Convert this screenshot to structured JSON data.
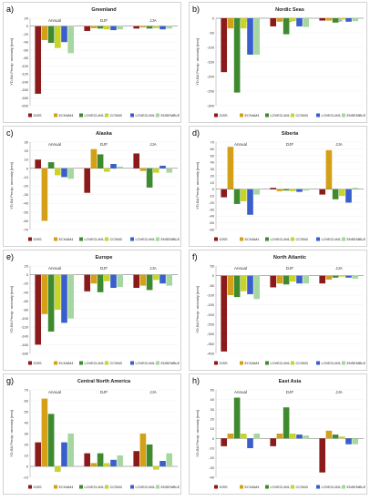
{
  "legend_labels": [
    "GISS",
    "ECHAM4",
    "LOVECLIM1.1",
    "CCSM3",
    "LOVECLIM1.2",
    "ENSEMBLE"
  ],
  "model_colors": [
    "#8b1a1a",
    "#d4a017",
    "#3f8a2e",
    "#c9d42a",
    "#3a5fcd",
    "#a7d7a0"
  ],
  "ylabel": "YD-BA Precip. anomaly [mm]",
  "chart_data": [
    {
      "panel": "a)",
      "title": "Greenland",
      "type": "bar",
      "categories": [
        "Annual",
        "DJF",
        "JJA"
      ],
      "ylim": [
        -200,
        20
      ],
      "yticks": [
        20,
        0,
        -20,
        -40,
        -60,
        -80,
        -100,
        -120,
        -140,
        -160,
        -180,
        -200
      ],
      "series": [
        {
          "name": "GISS",
          "values": [
            -170,
            -12,
            -6
          ]
        },
        {
          "name": "ECHAM4",
          "values": [
            -35,
            -5,
            -3
          ]
        },
        {
          "name": "LOVECLIM1.1",
          "values": [
            -42,
            -6,
            -6
          ]
        },
        {
          "name": "CCSM3",
          "values": [
            -55,
            -8,
            -5
          ]
        },
        {
          "name": "LOVECLIM1.2",
          "values": [
            -40,
            -10,
            -8
          ]
        },
        {
          "name": "ENSEMBLE",
          "values": [
            -68,
            -8,
            -6
          ]
        }
      ]
    },
    {
      "panel": "b)",
      "title": "Nordic Seas",
      "type": "bar",
      "categories": [
        "Annual",
        "DJF",
        "JJA"
      ],
      "ylim": [
        -300,
        0
      ],
      "yticks": [
        0,
        -50,
        -100,
        -150,
        -200,
        -250,
        -300
      ],
      "series": [
        {
          "name": "GISS",
          "values": [
            -185,
            -28,
            -8
          ]
        },
        {
          "name": "ECHAM4",
          "values": [
            -35,
            -12,
            -8
          ]
        },
        {
          "name": "LOVECLIM1.1",
          "values": [
            -255,
            -55,
            -15
          ]
        },
        {
          "name": "CCSM3",
          "values": [
            -35,
            -10,
            -5
          ]
        },
        {
          "name": "LOVECLIM1.2",
          "values": [
            -125,
            -28,
            -12
          ]
        },
        {
          "name": "ENSEMBLE",
          "values": [
            -125,
            -30,
            -10
          ]
        }
      ]
    },
    {
      "panel": "c)",
      "title": "Alaska",
      "type": "bar",
      "categories": [
        "Annual",
        "DJF",
        "JJA"
      ],
      "ylim": [
        -70,
        30
      ],
      "yticks": [
        30,
        20,
        10,
        0,
        -10,
        -20,
        -30,
        -40,
        -50,
        -60,
        -70
      ],
      "series": [
        {
          "name": "GISS",
          "values": [
            10,
            -28,
            17
          ]
        },
        {
          "name": "ECHAM4",
          "values": [
            -60,
            22,
            -3
          ]
        },
        {
          "name": "LOVECLIM1.1",
          "values": [
            7,
            16,
            -22
          ]
        },
        {
          "name": "CCSM3",
          "values": [
            -8,
            -4,
            -5
          ]
        },
        {
          "name": "LOVECLIM1.2",
          "values": [
            -10,
            5,
            3
          ]
        },
        {
          "name": "ENSEMBLE",
          "values": [
            -12,
            2,
            -5
          ]
        }
      ]
    },
    {
      "panel": "d)",
      "title": "Siberia",
      "type": "bar",
      "categories": [
        "Annual",
        "DJF",
        "JJA"
      ],
      "ylim": [
        -60,
        70
      ],
      "yticks": [
        70,
        60,
        50,
        40,
        30,
        20,
        10,
        0,
        -10,
        -20,
        -30,
        -40,
        -50,
        -60
      ],
      "series": [
        {
          "name": "GISS",
          "values": [
            -12,
            2,
            -8
          ]
        },
        {
          "name": "ECHAM4",
          "values": [
            63,
            -3,
            58
          ]
        },
        {
          "name": "LOVECLIM1.1",
          "values": [
            -22,
            -2,
            -15
          ]
        },
        {
          "name": "CCSM3",
          "values": [
            -18,
            -3,
            -10
          ]
        },
        {
          "name": "LOVECLIM1.2",
          "values": [
            -38,
            -4,
            -20
          ]
        },
        {
          "name": "ENSEMBLE",
          "values": [
            -8,
            -2,
            2
          ]
        }
      ]
    },
    {
      "panel": "e)",
      "title": "Europe",
      "type": "bar",
      "categories": [
        "Annual",
        "DJF",
        "JJA"
      ],
      "ylim": [
        -180,
        20
      ],
      "yticks": [
        20,
        0,
        -20,
        -40,
        -60,
        -80,
        -100,
        -120,
        -140,
        -160,
        -180
      ],
      "series": [
        {
          "name": "GISS",
          "values": [
            -160,
            -38,
            -30
          ]
        },
        {
          "name": "ECHAM4",
          "values": [
            -90,
            -20,
            -25
          ]
        },
        {
          "name": "LOVECLIM1.1",
          "values": [
            -130,
            -40,
            -35
          ]
        },
        {
          "name": "CCSM3",
          "values": [
            -80,
            -15,
            -12
          ]
        },
        {
          "name": "LOVECLIM1.2",
          "values": [
            -110,
            -30,
            -20
          ]
        },
        {
          "name": "ENSEMBLE",
          "values": [
            -100,
            -28,
            -25
          ]
        }
      ]
    },
    {
      "panel": "f)",
      "title": "North Atlantic",
      "type": "bar",
      "categories": [
        "Annual",
        "DJF",
        "JJA"
      ],
      "ylim": [
        -400,
        50
      ],
      "yticks": [
        50,
        0,
        -50,
        -100,
        -150,
        -200,
        -250,
        -300,
        -350,
        -400
      ],
      "series": [
        {
          "name": "GISS",
          "values": [
            -390,
            -60,
            -40
          ]
        },
        {
          "name": "ECHAM4",
          "values": [
            -100,
            -40,
            -20
          ]
        },
        {
          "name": "LOVECLIM1.1",
          "values": [
            -110,
            -45,
            -10
          ]
        },
        {
          "name": "CCSM3",
          "values": [
            -80,
            -30,
            -5
          ]
        },
        {
          "name": "LOVECLIM1.2",
          "values": [
            -95,
            -40,
            -10
          ]
        },
        {
          "name": "ENSEMBLE",
          "values": [
            -120,
            -40,
            -15
          ]
        }
      ]
    },
    {
      "panel": "g)",
      "title": "Central North America",
      "type": "bar",
      "categories": [
        "Annual",
        "DJF",
        "JJA"
      ],
      "ylim": [
        -10,
        70
      ],
      "yticks": [
        70,
        60,
        50,
        40,
        30,
        20,
        10,
        0,
        -10
      ],
      "series": [
        {
          "name": "GISS",
          "values": [
            22,
            12,
            14
          ]
        },
        {
          "name": "ECHAM4",
          "values": [
            62,
            3,
            30
          ]
        },
        {
          "name": "LOVECLIM1.1",
          "values": [
            48,
            12,
            20
          ]
        },
        {
          "name": "CCSM3",
          "values": [
            -5,
            3,
            -3
          ]
        },
        {
          "name": "LOVECLIM1.2",
          "values": [
            22,
            6,
            5
          ]
        },
        {
          "name": "ENSEMBLE",
          "values": [
            30,
            10,
            12
          ]
        }
      ]
    },
    {
      "panel": "h)",
      "title": "East Asia",
      "type": "bar",
      "categories": [
        "Annual",
        "DJF",
        "JJA"
      ],
      "ylim": [
        -40,
        50
      ],
      "yticks": [
        50,
        40,
        30,
        20,
        10,
        0,
        -10,
        -20,
        -30,
        -40
      ],
      "series": [
        {
          "name": "GISS",
          "values": [
            -8,
            -8,
            -35
          ]
        },
        {
          "name": "ECHAM4",
          "values": [
            5,
            5,
            8
          ]
        },
        {
          "name": "LOVECLIM1.1",
          "values": [
            42,
            32,
            4
          ]
        },
        {
          "name": "CCSM3",
          "values": [
            5,
            5,
            2
          ]
        },
        {
          "name": "LOVECLIM1.2",
          "values": [
            -10,
            4,
            -6
          ]
        },
        {
          "name": "ENSEMBLE",
          "values": [
            5,
            3,
            -6
          ]
        }
      ]
    }
  ]
}
